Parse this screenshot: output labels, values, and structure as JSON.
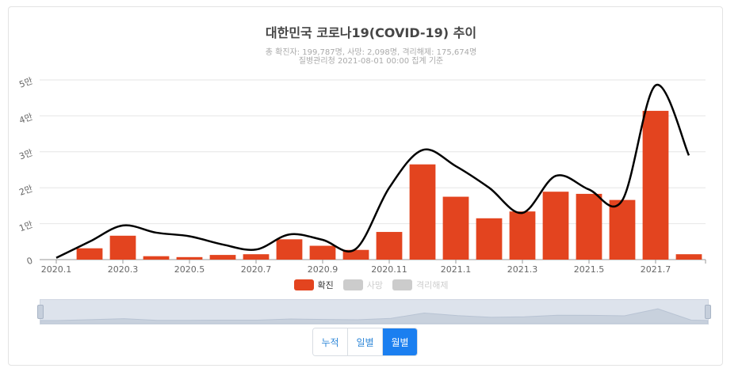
{
  "header": {
    "title": "대한민국 코로나19(COVID-19) 추이",
    "subtitle1": "총 확진자: 199,787명, 사망: 2,098명, 격리해제: 175,674명",
    "subtitle2": "질병관리청 2021-08-01 00:00 집계 기준"
  },
  "legend": {
    "items": [
      {
        "label": "확진",
        "color": "#e3441f",
        "active": true
      },
      {
        "label": "사망",
        "color": "#cccccc",
        "active": false
      },
      {
        "label": "격리해제",
        "color": "#cccccc",
        "active": false
      }
    ]
  },
  "toggle": {
    "buttons": [
      {
        "label": "누적",
        "active": false
      },
      {
        "label": "일별",
        "active": false
      },
      {
        "label": "월별",
        "active": true
      }
    ]
  },
  "chart_data": {
    "type": "bar",
    "x_tick_labels": [
      "2020.1",
      "2020.3",
      "2020.5",
      "2020.7",
      "2020.9",
      "2020.11",
      "2021.1",
      "2021.3",
      "2021.5",
      "2021.7"
    ],
    "categories": [
      "2020.1",
      "2020.2",
      "2020.3",
      "2020.4",
      "2020.5",
      "2020.6",
      "2020.7",
      "2020.8",
      "2020.9",
      "2020.10",
      "2020.11",
      "2020.12",
      "2021.1",
      "2021.2",
      "2021.3",
      "2021.4",
      "2021.5",
      "2021.6",
      "2021.7",
      "2021.8"
    ],
    "y_tick_labels": [
      "0",
      "1만",
      "2만",
      "3만",
      "4만",
      "5만"
    ],
    "ylim": [
      0,
      50000
    ],
    "series": [
      {
        "name": "확진",
        "color": "#e3441f",
        "values": [
          0,
          3150,
          6650,
          950,
          700,
          1300,
          1500,
          5650,
          3850,
          2700,
          7700,
          26500,
          17500,
          11500,
          13400,
          18900,
          18300,
          16600,
          41400,
          1500
        ]
      }
    ],
    "trend_line": {
      "x": [
        "2020.1",
        "2020.2",
        "2020.3",
        "2020.4",
        "2020.5",
        "2020.6",
        "2020.7",
        "2020.8",
        "2020.9",
        "2020.10",
        "2020.11",
        "2020.12",
        "2021.1",
        "2021.2",
        "2021.3",
        "2021.4",
        "2021.5",
        "2021.6",
        "2021.7",
        "2021.8"
      ],
      "values": [
        500,
        5000,
        9500,
        7500,
        6500,
        4200,
        2800,
        7000,
        5500,
        3000,
        20000,
        30500,
        26000,
        20000,
        13000,
        23300,
        19500,
        16500,
        48500,
        29000
      ]
    },
    "grid": true
  }
}
